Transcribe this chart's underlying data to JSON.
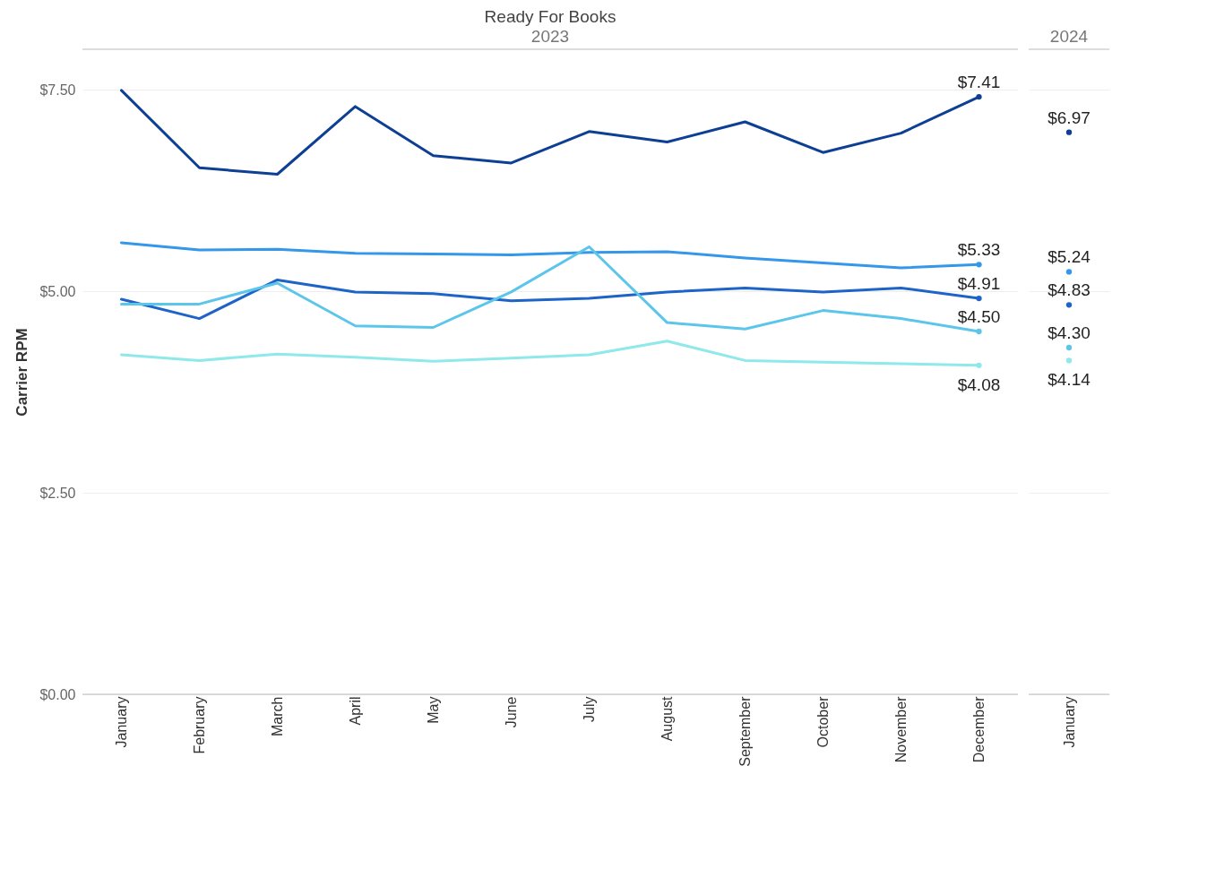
{
  "chart_data": [
    {
      "type": "line",
      "title": "Ready For Books",
      "subtitle": "2023",
      "ylabel": "Carrier RPM",
      "categories": [
        "January",
        "February",
        "March",
        "April",
        "May",
        "June",
        "July",
        "August",
        "September",
        "October",
        "November",
        "December"
      ],
      "series": [
        {
          "color": "#0d3f94",
          "values": [
            7.49,
            6.53,
            6.45,
            7.29,
            6.68,
            6.59,
            6.98,
            6.85,
            7.1,
            6.72,
            6.96,
            7.41
          ],
          "value_labels": [
            null,
            null,
            null,
            null,
            null,
            null,
            null,
            null,
            null,
            null,
            null,
            "$7.41"
          ]
        },
        {
          "color": "#3497ea",
          "values": [
            5.6,
            5.51,
            5.52,
            5.47,
            5.46,
            5.45,
            5.48,
            5.49,
            5.41,
            5.35,
            5.29,
            5.33
          ],
          "value_labels": [
            null,
            null,
            null,
            null,
            null,
            null,
            null,
            null,
            null,
            null,
            null,
            "$5.33"
          ]
        },
        {
          "color": "#1e64c8",
          "values": [
            4.9,
            4.66,
            5.14,
            4.99,
            4.97,
            4.88,
            4.91,
            4.99,
            5.04,
            4.99,
            5.04,
            4.91
          ],
          "value_labels": [
            null,
            null,
            null,
            null,
            null,
            null,
            null,
            null,
            null,
            null,
            null,
            "$4.91"
          ]
        },
        {
          "color": "#5cc6ea",
          "values": [
            4.84,
            4.84,
            5.1,
            4.57,
            4.55,
            4.99,
            5.55,
            4.61,
            4.53,
            4.76,
            4.66,
            4.5
          ],
          "value_labels": [
            null,
            null,
            null,
            null,
            null,
            null,
            null,
            null,
            null,
            null,
            null,
            "$4.50"
          ]
        },
        {
          "color": "#8fe8ea",
          "values": [
            4.21,
            4.14,
            4.22,
            4.18,
            4.13,
            4.17,
            4.21,
            4.38,
            4.14,
            4.12,
            4.1,
            4.08
          ],
          "value_labels": [
            null,
            null,
            null,
            null,
            null,
            null,
            null,
            null,
            null,
            null,
            null,
            "$4.08"
          ]
        }
      ],
      "ylim": [
        0,
        8
      ],
      "yticks": [
        {
          "value": 0,
          "label": "$0.00"
        },
        {
          "value": 2.5,
          "label": "$2.50"
        },
        {
          "value": 5,
          "label": "$5.00"
        },
        {
          "value": 7.5,
          "label": "$7.50"
        }
      ],
      "grid": "y",
      "legend": false
    },
    {
      "type": "scatter",
      "subtitle": "2024",
      "categories": [
        "January"
      ],
      "series": [
        {
          "color": "#0d3f94",
          "values": [
            6.97
          ],
          "value_labels": [
            "$6.97"
          ]
        },
        {
          "color": "#3497ea",
          "values": [
            5.24
          ],
          "value_labels": [
            "$5.24"
          ]
        },
        {
          "color": "#1e64c8",
          "values": [
            4.83
          ],
          "value_labels": [
            "$4.83"
          ]
        },
        {
          "color": "#5cc6ea",
          "values": [
            4.3
          ],
          "value_labels": [
            "$4.30"
          ]
        },
        {
          "color": "#8fe8ea",
          "values": [
            4.14
          ],
          "value_labels": [
            "$4.14"
          ]
        }
      ],
      "ylim": [
        0,
        8
      ],
      "yticks": [
        0,
        2.5,
        5,
        7.5
      ],
      "grid": "y",
      "legend": false,
      "tick_labels": "x"
    }
  ]
}
